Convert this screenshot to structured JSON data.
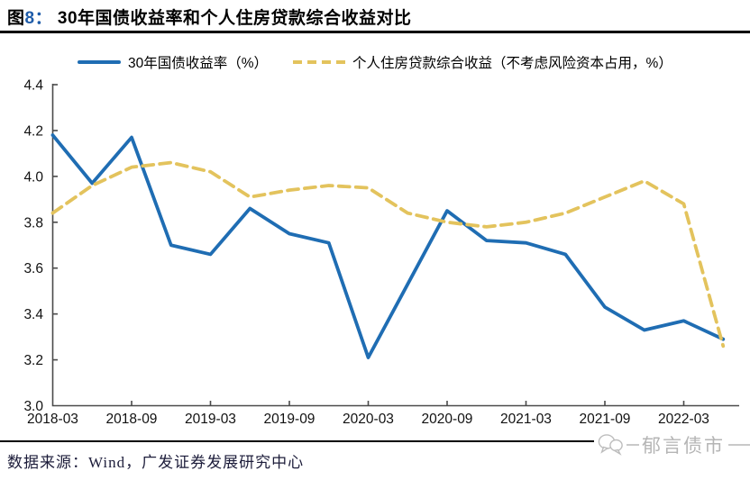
{
  "header": {
    "figure_prefix": "图",
    "figure_no": "8：",
    "title": "30年国债收益率和个人住房贷款综合收益对比"
  },
  "chart_data": {
    "type": "line",
    "categories": [
      "2018-03",
      "2018-06",
      "2018-09",
      "2018-12",
      "2019-03",
      "2019-06",
      "2019-09",
      "2019-12",
      "2020-03",
      "2020-06",
      "2020-09",
      "2020-12",
      "2021-03",
      "2021-06",
      "2021-09",
      "2021-12",
      "2022-03",
      "2022-06"
    ],
    "series": [
      {
        "name": "30年国债收益率（%）",
        "color": "#1f6db3",
        "style": "solid",
        "values": [
          4.18,
          3.97,
          4.17,
          3.7,
          3.66,
          3.86,
          3.75,
          3.71,
          3.21,
          3.53,
          3.85,
          3.72,
          3.71,
          3.66,
          3.43,
          3.33,
          3.37,
          3.29
        ]
      },
      {
        "name": "个人住房贷款综合收益（不考虑风险资本占用，%）",
        "color": "#e3c35d",
        "style": "dashed",
        "values": [
          3.84,
          3.96,
          4.04,
          4.06,
          4.02,
          3.91,
          3.94,
          3.96,
          3.95,
          3.84,
          3.8,
          3.78,
          3.8,
          3.84,
          3.91,
          3.98,
          3.88,
          3.26
        ]
      }
    ],
    "ylim": [
      3.0,
      4.4
    ],
    "ytick_labels": [
      "3.0",
      "3.2",
      "3.4",
      "3.6",
      "3.8",
      "4.0",
      "4.2",
      "4.4"
    ],
    "xtick_labels": [
      "2018-03",
      "2018-09",
      "2019-03",
      "2019-09",
      "2020-03",
      "2020-09",
      "2021-03",
      "2021-09",
      "2022-03"
    ],
    "grid": false,
    "legend_position": "top"
  },
  "footer": {
    "source": "数据来源：Wind，广发证券发展研究中心"
  },
  "watermark": {
    "icon": "wechat-bubbles-icon",
    "text": "郁言债市"
  },
  "colors": {
    "accent_blue": "#1f6db3",
    "accent_gold": "#e3c35d",
    "figure_no_blue": "#1f5ca9",
    "axis": "#4a4a4a",
    "watermark_gray": "#b5b5b5"
  }
}
